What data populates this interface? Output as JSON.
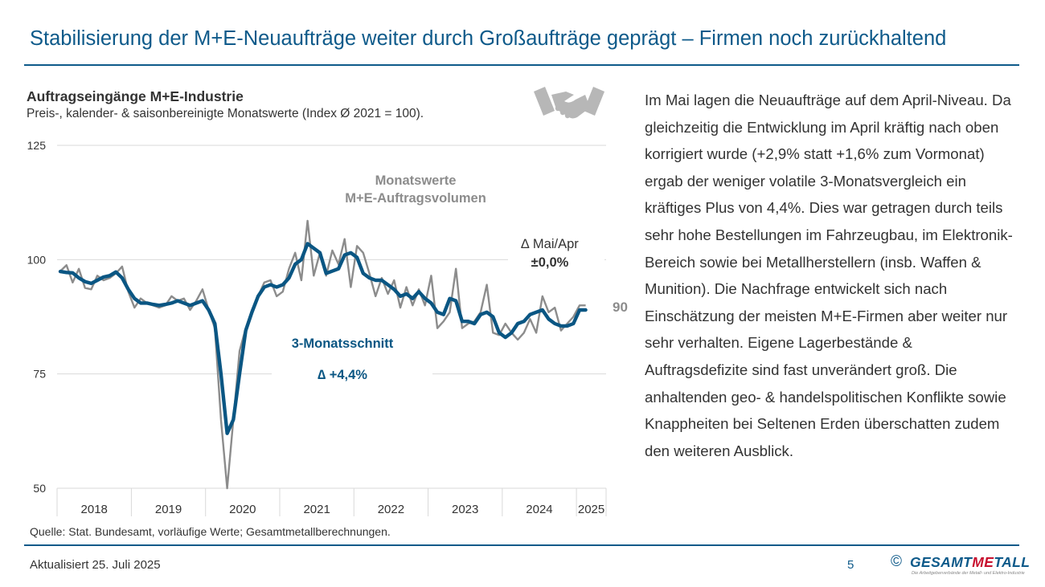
{
  "page": {
    "title": "Stabilisierung der M+E-Neuaufträge weiter durch Großaufträge geprägt – Firmen noch zurückhaltend",
    "source": "Quelle: Stat. Bundesamt, vorläufige Werte; Gesamtmetallberechnungen.",
    "body_text": "Im Mai lagen die Neuaufträge auf dem April-Niveau. Da gleichzeitig die Entwicklung im April kräftig nach oben korrigiert wurde (+2,9% statt +1,6% zum Vormonat) ergab der weniger volatile 3-Monatsvergleich ein kräftiges Plus von 4,4%. Dies war getragen durch teils sehr hohe Bestellungen im Fahrzeugbau, im Elektronik-Bereich sowie bei Metallherstellern (insb. Waffen & Munition). Die Nachfrage entwickelt sich nach Einschätzung der meisten M+E-Firmen aber weiter nur sehr verhalten. Eigene Lagerbestände & Auftragsdefizite sind fast unverändert groß. Die anhaltenden geo- & handelspolitischen Konflikte sowie Knappheiten bei Seltenen Erden überschatten zudem den weiteren Ausblick.",
    "updated": "Aktualisiert 25. Juli 2025",
    "page_number": "5",
    "copyright": "©",
    "logo_pre": "GESAMT",
    "logo_me": "ME",
    "logo_post": "TALL",
    "logo_tagline": "Die Arbeitgeberverbände der Metall- und Elektro-Industrie",
    "icon": "handshake-icon"
  },
  "colors": {
    "primary": "#0e5a8a",
    "monthly": "#8c8c8c",
    "three_month": "#0a5683",
    "grid": "#d9d9d9",
    "text": "#333333",
    "accent_red": "#c8102e"
  },
  "chart_data": {
    "type": "line",
    "title": "Auftragseingänge M+E-Industrie",
    "subtitle": "Preis-, kalender- & saisonbereinigte Monatswerte (Index Ø 2021 = 100).",
    "start": "2018-01",
    "ylim": [
      50,
      125
    ],
    "yticks": [
      50,
      75,
      100,
      125
    ],
    "year_labels": [
      "2018",
      "2019",
      "2020",
      "2021",
      "2022",
      "2023",
      "2024",
      "2025"
    ],
    "series": [
      {
        "name": "Monatswerte M+E-Auftragsvolumen",
        "label_line1": "Monatswerte",
        "label_line2": "M+E-Auftragsvolumen",
        "values": [
          97.5,
          98.8,
          95,
          98,
          93.8,
          93.5,
          96.5,
          95.5,
          96,
          97,
          98.5,
          93,
          89.5,
          91.5,
          90.5,
          90,
          89.5,
          90,
          92,
          91,
          91.5,
          89,
          91,
          93.5,
          89,
          85,
          65,
          50,
          65,
          80,
          85,
          89,
          92,
          95,
          95.5,
          92,
          93,
          98,
          101.5,
          95.5,
          108.5,
          96.5,
          101.5,
          96.5,
          102,
          99,
          104.5,
          94,
          103,
          101.5,
          97,
          92,
          96,
          92.5,
          95.5,
          89.5,
          94,
          90,
          93.5,
          90,
          96.5,
          85,
          86.5,
          88.5,
          98,
          85,
          86,
          86.5,
          88.5,
          94.5,
          84,
          83.5,
          86,
          84,
          82.5,
          84,
          87,
          84,
          92,
          88.5,
          89.5,
          84.5,
          86,
          87.5,
          90,
          90
        ]
      },
      {
        "name": "3-Monatsschnitt",
        "values": [
          97.4,
          97.2,
          97.1,
          96,
          95.2,
          94.8,
          95.5,
          96.2,
          96.5,
          97.3,
          96,
          93.5,
          91.5,
          90.5,
          90.5,
          90.2,
          90,
          90.2,
          90.5,
          91,
          90.5,
          90,
          90.5,
          91,
          89,
          86,
          75,
          62,
          65,
          75,
          84.5,
          88.5,
          92,
          94,
          94.5,
          94,
          94.5,
          96,
          99,
          100,
          103.5,
          102.5,
          101.5,
          97,
          97.5,
          98,
          101,
          101.5,
          100.5,
          97,
          96,
          95.5,
          95.5,
          94.5,
          93.5,
          92,
          92.5,
          91.5,
          93,
          91.5,
          90.5,
          88.5,
          88,
          91.5,
          91,
          86.5,
          86.5,
          86,
          88,
          88.5,
          87.5,
          84,
          83,
          84,
          86,
          86.5,
          88,
          88.5,
          89,
          87,
          86,
          85.5,
          85.5,
          86,
          89,
          89
        ]
      }
    ],
    "annotations": {
      "three_month_label": "3-Monatsschnitt",
      "three_month_change": "∆ +4,4%",
      "monthly_change_label": "∆ Mai/Apr",
      "monthly_change_value": "±0,0%",
      "last_value_label": "90"
    }
  }
}
